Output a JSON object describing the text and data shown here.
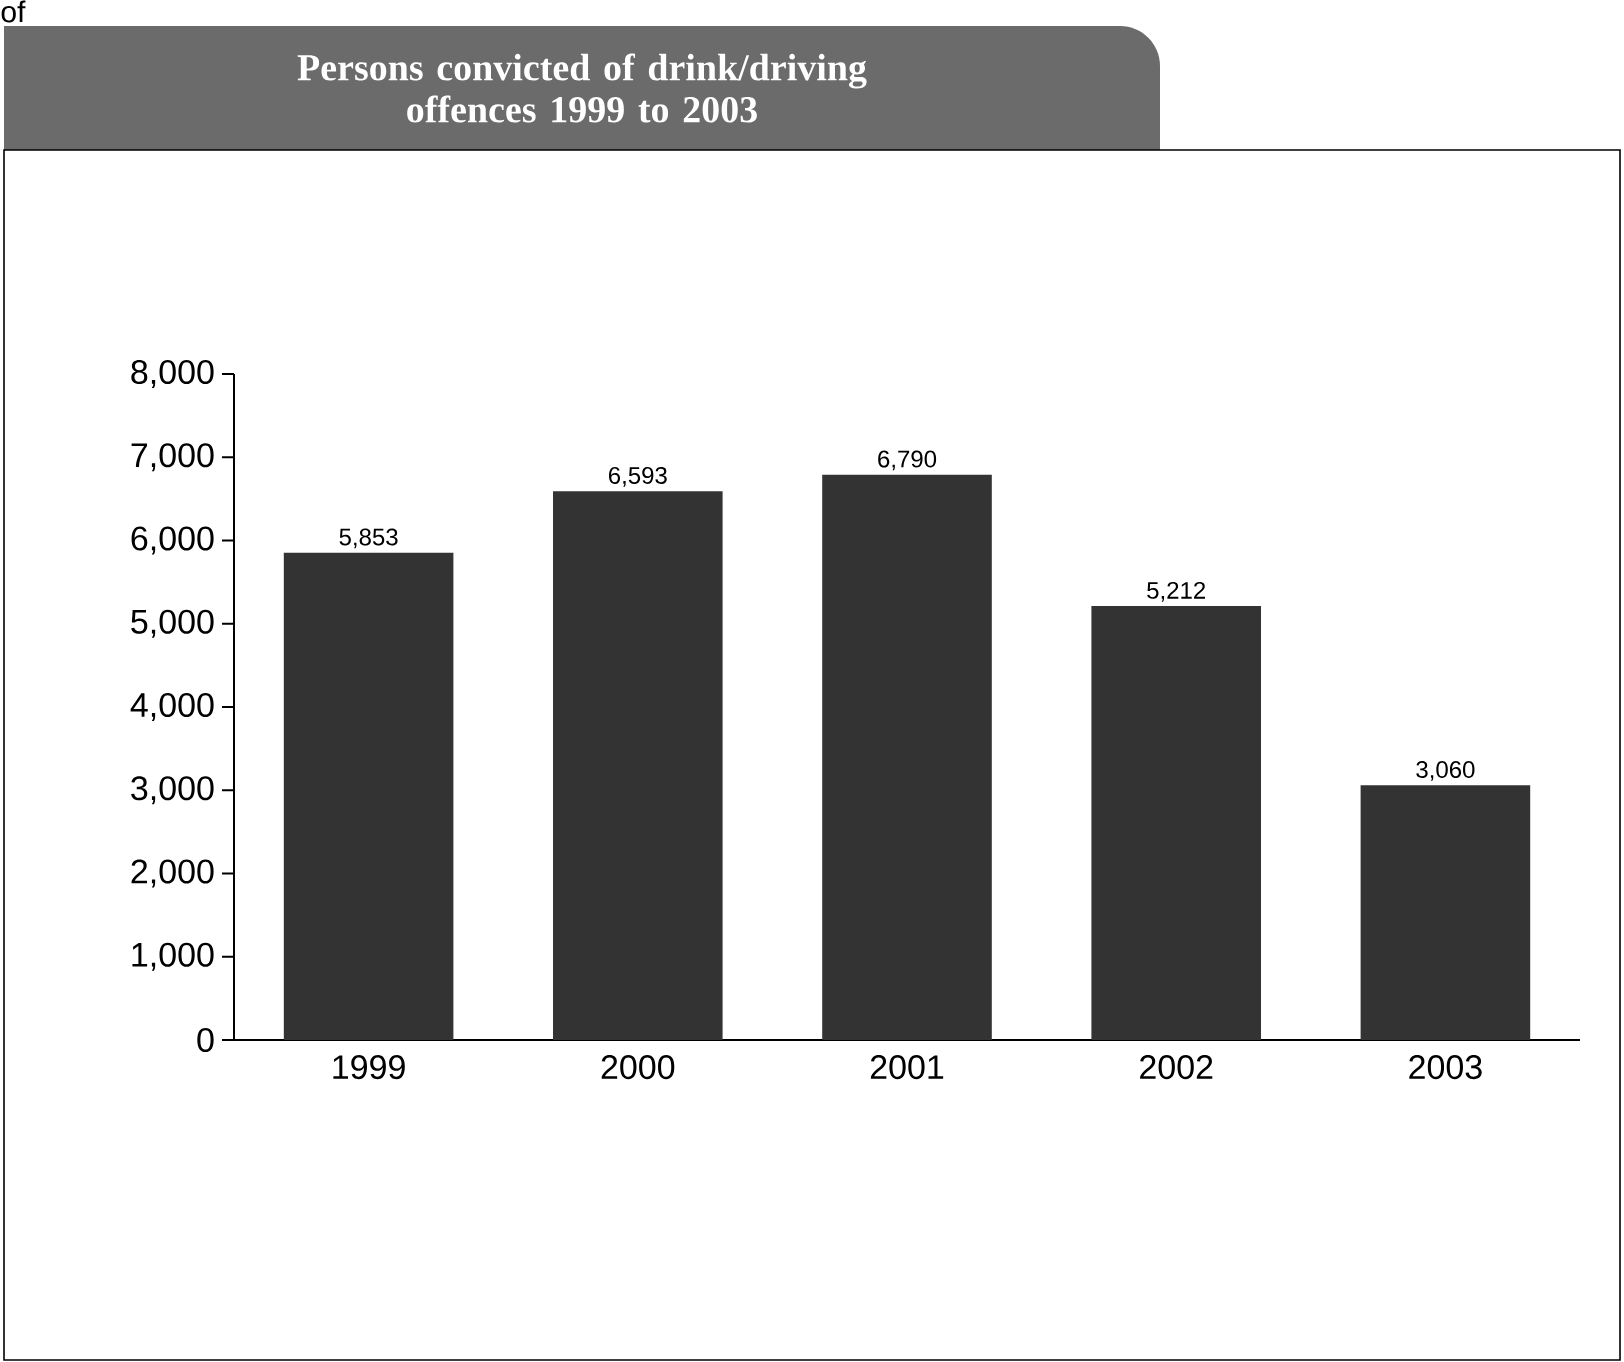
{
  "chart_data": {
    "type": "bar",
    "title": "Persons convicted of drink/driving offences 1999 to 2003",
    "categories": [
      "1999",
      "2000",
      "2001",
      "2002",
      "2003"
    ],
    "values": [
      5853,
      6593,
      6790,
      5212,
      3060
    ],
    "value_labels": [
      "5,853",
      "6,593",
      "6,790",
      "5,212",
      "3,060"
    ],
    "color": "#333333",
    "ylim": [
      0,
      8000
    ],
    "yticks": [
      {
        "value": 0,
        "label": "0"
      },
      {
        "value": 1000,
        "label": "1,000"
      },
      {
        "value": 2000,
        "label": "2,000"
      },
      {
        "value": 3000,
        "label": "3,000"
      },
      {
        "value": 4000,
        "label": "4,000"
      },
      {
        "value": 5000,
        "label": "5,000"
      },
      {
        "value": 6000,
        "label": "6,000"
      },
      {
        "value": 7000,
        "label": "7,000"
      },
      {
        "value": 8000,
        "label": "8,000"
      }
    ],
    "annotations": [
      "of"
    ],
    "grid": false
  }
}
